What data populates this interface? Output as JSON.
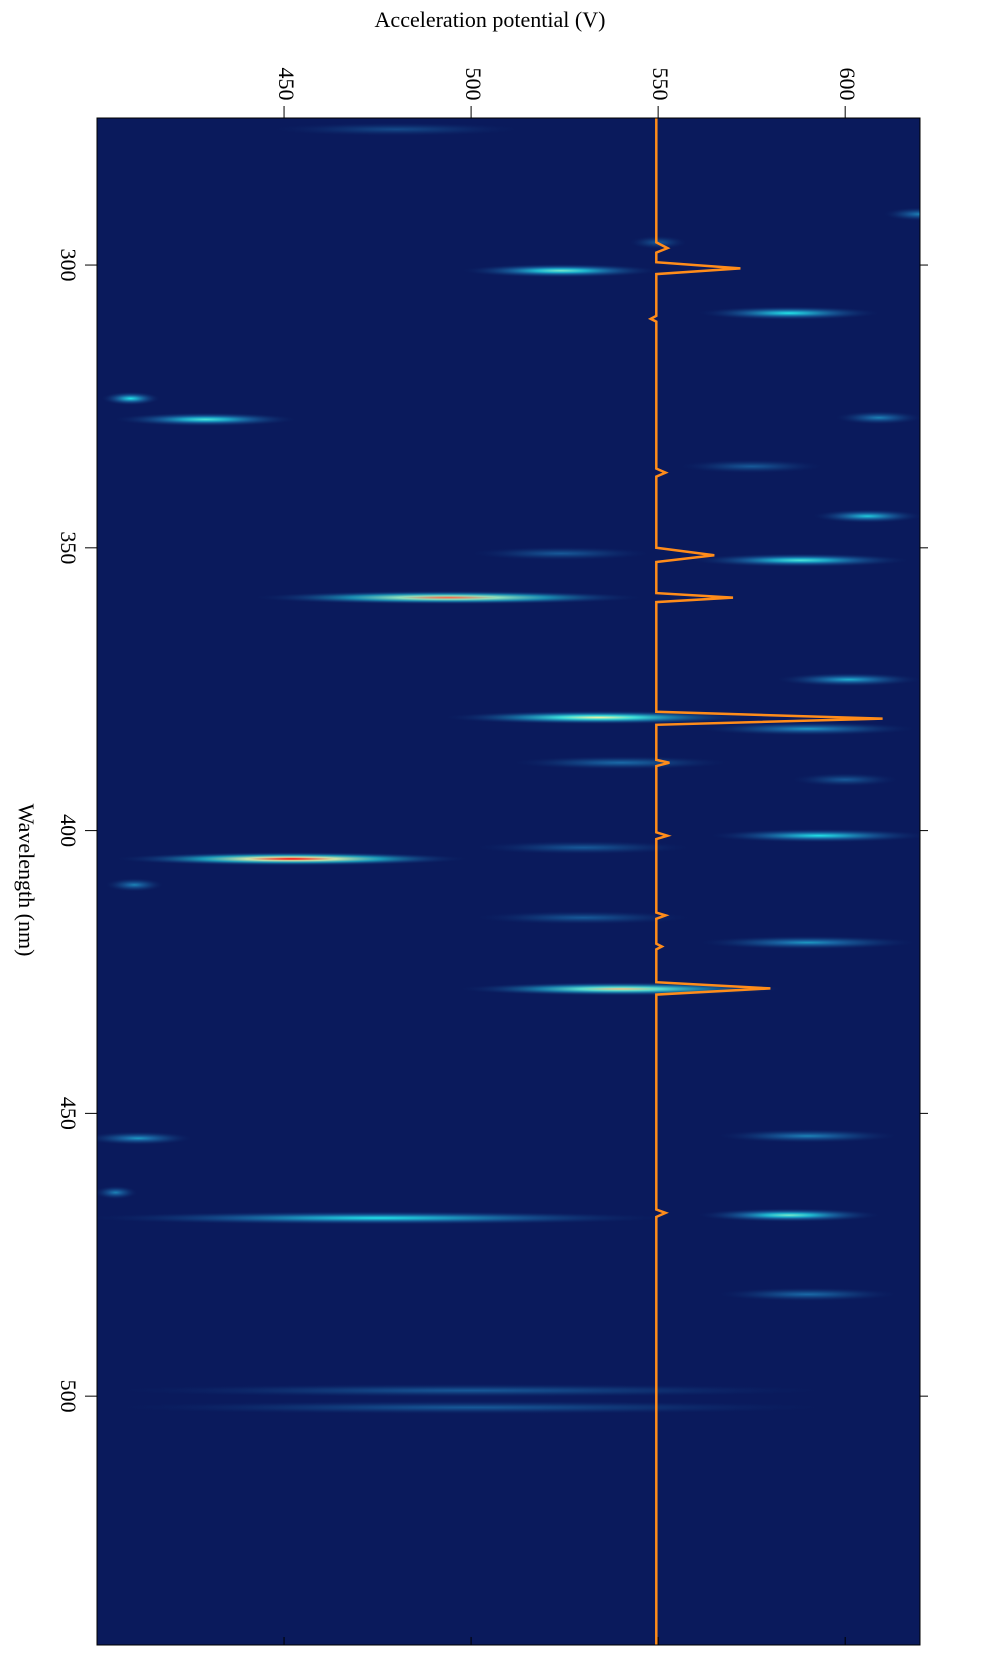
{
  "chart_data": {
    "type": "contour",
    "xlabel": "Wavelength (nm)",
    "ylabel": "Acceleration potential (V)",
    "xlim": [
      274,
      544
    ],
    "xticks": [
      300,
      350,
      400,
      450,
      500
    ],
    "ylim": [
      400,
      620
    ],
    "yticks": [
      450,
      500,
      550,
      600
    ],
    "colormap": [
      "#0a1a5c",
      "#1a6aa8",
      "#22e5e8",
      "#fff3a0",
      "#ff0000"
    ],
    "spots": {
      "x": [
        276,
        291,
        296,
        301,
        308.5,
        323.6,
        327.3,
        327,
        335.6,
        344.4,
        352.2,
        351,
        358.8,
        373.3,
        380,
        382,
        388,
        391,
        400.9,
        403,
        405,
        409.6,
        415.4,
        419.8,
        428,
        454.4,
        454,
        464,
        468.5,
        468,
        482,
        499,
        502
      ],
      "y": [
        480,
        620,
        550,
        524,
        585,
        409,
        429,
        609,
        575,
        606,
        588,
        524,
        494,
        601,
        534,
        590,
        540,
        600,
        593,
        530,
        452,
        410,
        530,
        590,
        540,
        411,
        590,
        405,
        475,
        585,
        590,
        500,
        500
      ],
      "spread": [
        35,
        10,
        8,
        27,
        25,
        8,
        25,
        12,
        20,
        15,
        30,
        25,
        53,
        20,
        42,
        30,
        30,
        15,
        30,
        30,
        48,
        8,
        30,
        30,
        44,
        15,
        25,
        6,
        80,
        25,
        25,
        100,
        100
      ],
      "intensity": [
        0.15,
        0.3,
        0.2,
        0.6,
        0.5,
        0.5,
        0.55,
        0.3,
        0.2,
        0.45,
        0.55,
        0.2,
        0.9,
        0.4,
        0.75,
        0.35,
        0.25,
        0.2,
        0.5,
        0.2,
        1.0,
        0.3,
        0.2,
        0.35,
        0.8,
        0.35,
        0.3,
        0.3,
        0.5,
        0.6,
        0.25,
        0.2,
        0.2
      ]
    },
    "line": {
      "color": "#ff8c1a",
      "x": [
        274,
        296,
        297,
        297.8,
        299.5,
        300.6,
        301.6,
        309,
        309.5,
        310,
        336,
        336.7,
        337.4,
        350,
        351.3,
        352.5,
        358,
        358.8,
        359.6,
        379,
        380.2,
        381.3,
        387.5,
        388,
        388.6,
        400.3,
        400.9,
        401.5,
        414.5,
        415,
        415.6,
        420,
        420.5,
        421,
        426.8,
        427.9,
        429,
        467,
        467.6,
        468.3,
        500,
        544
      ],
      "values": [
        549.5,
        549.5,
        552.5,
        549.5,
        549.5,
        572,
        549.5,
        549.5,
        548,
        549.5,
        549.5,
        552,
        549.5,
        549.5,
        565,
        549.5,
        549.5,
        570,
        549.5,
        549.5,
        610,
        549.5,
        549.5,
        553,
        549.5,
        549.5,
        552.5,
        549.5,
        549.5,
        552,
        549.5,
        549.5,
        551,
        549.5,
        549.5,
        580,
        549.5,
        549.5,
        552,
        549.5,
        549.5,
        549.5
      ]
    }
  }
}
